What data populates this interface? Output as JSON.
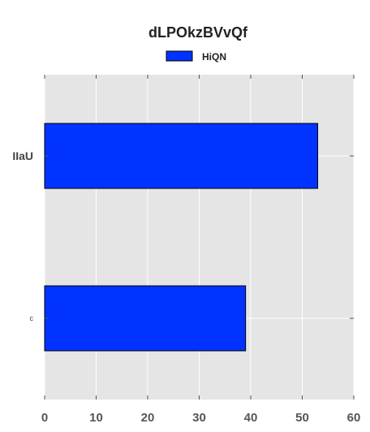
{
  "chart_data": {
    "type": "bar",
    "orientation": "horizontal",
    "title": "dLPOkzBVvQf",
    "xlabel": "",
    "ylabel": "",
    "categories": [
      "IIaU",
      "c"
    ],
    "series": [
      {
        "name": "HiQN",
        "values": [
          53,
          39
        ],
        "color": "#0033ff"
      }
    ],
    "xlim": [
      0,
      60
    ],
    "xticks": [
      0,
      10,
      20,
      30,
      40,
      50,
      60
    ],
    "grid": true,
    "legend": "top-center",
    "background": "#e5e5e5",
    "grid_color": "#ffffff"
  }
}
